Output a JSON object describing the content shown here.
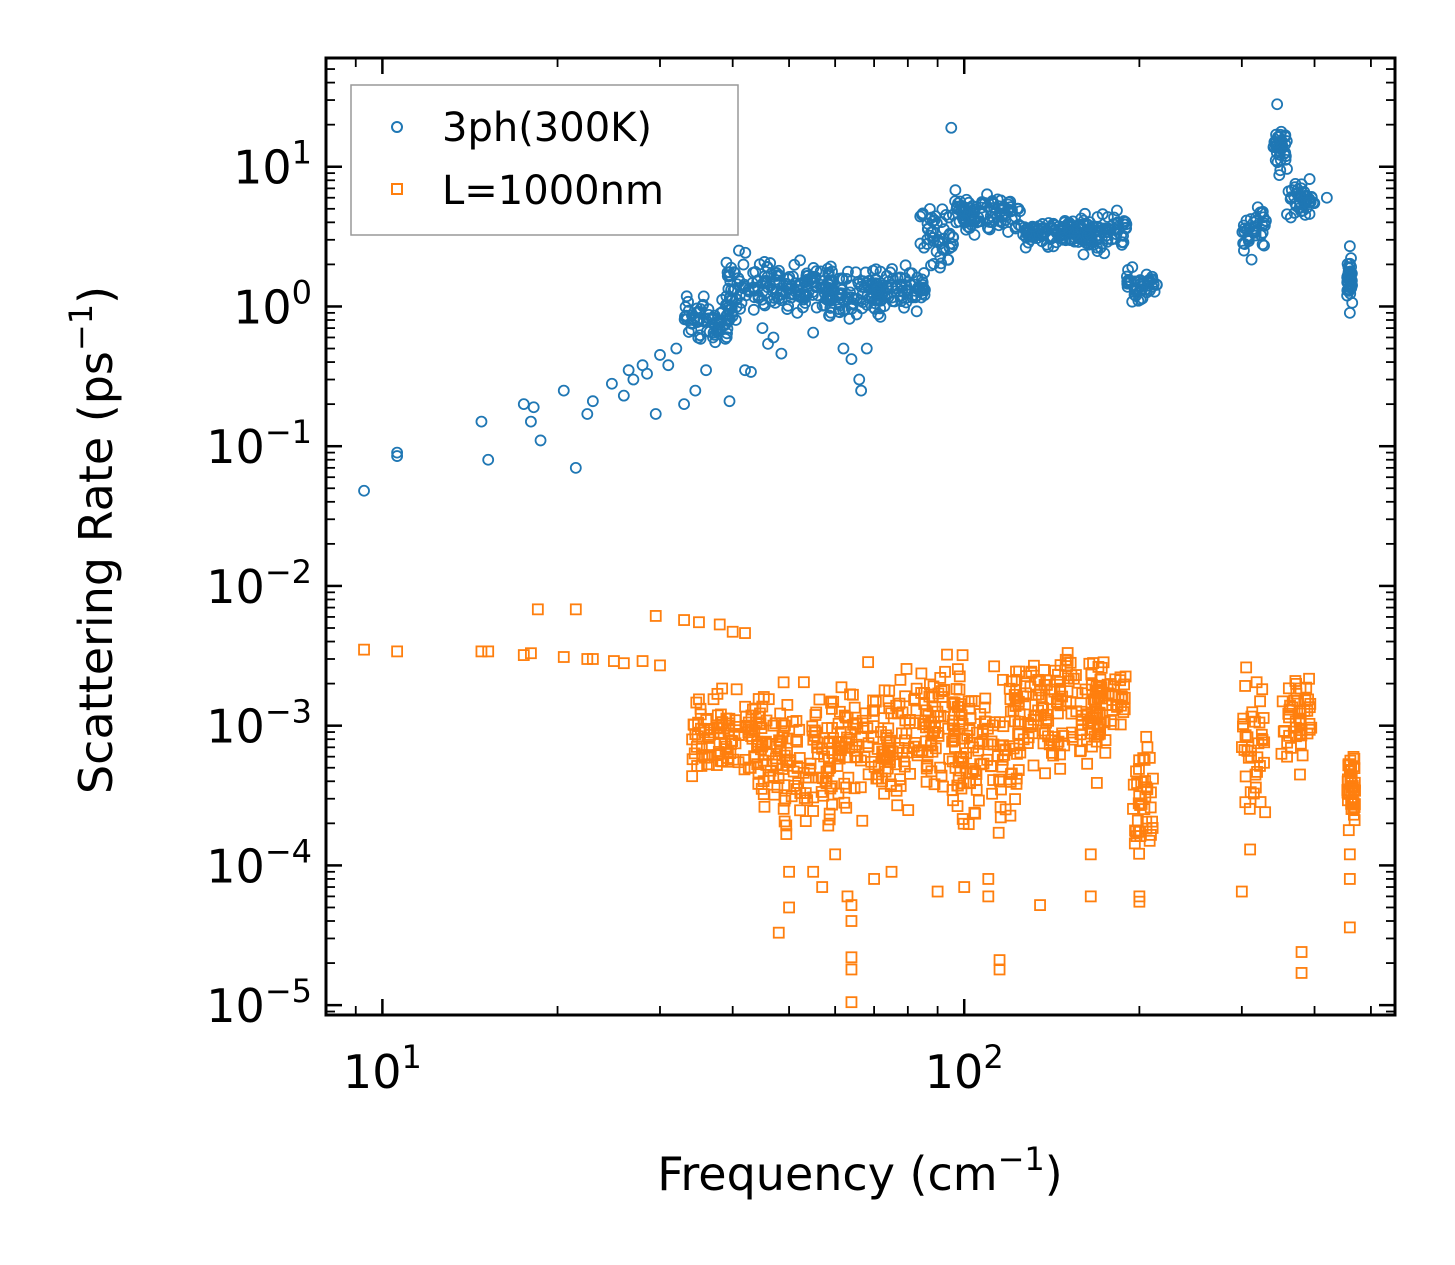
{
  "chart_data": {
    "type": "scatter",
    "xscale": "log",
    "yscale": "log",
    "xlim": [
      8,
      550
    ],
    "ylim": [
      8.5e-06,
      60
    ],
    "xlabel": {
      "text": "Frequency (cm",
      "sup": "−1",
      "close": ")"
    },
    "ylabel": {
      "text": "Scattering Rate (ps",
      "sup": "−1",
      "close": ")"
    },
    "xticks": [
      {
        "value": 10,
        "base": "10",
        "exp": "1"
      },
      {
        "value": 100,
        "base": "10",
        "exp": "2"
      }
    ],
    "yticks": [
      {
        "value": 1e-05,
        "base": "10",
        "exp": "−5"
      },
      {
        "value": 0.0001,
        "base": "10",
        "exp": "−4"
      },
      {
        "value": 0.001,
        "base": "10",
        "exp": "−3"
      },
      {
        "value": 0.01,
        "base": "10",
        "exp": "−2"
      },
      {
        "value": 0.1,
        "base": "10",
        "exp": "−1"
      },
      {
        "value": 1,
        "base": "10",
        "exp": "0"
      },
      {
        "value": 10,
        "base": "10",
        "exp": "1"
      }
    ],
    "legend_position": "top-left",
    "series": [
      {
        "name": "3ph(300K)",
        "marker": "circle",
        "color": "#1f77b4",
        "points": [
          [
            9.3,
            0.048
          ],
          [
            10.6,
            0.085
          ],
          [
            10.6,
            0.09
          ],
          [
            14.8,
            0.15
          ],
          [
            15.2,
            0.08
          ],
          [
            17.5,
            0.2
          ],
          [
            18.0,
            0.15
          ],
          [
            18.2,
            0.19
          ],
          [
            18.7,
            0.11
          ],
          [
            20.5,
            0.25
          ],
          [
            21.5,
            0.07
          ],
          [
            22.5,
            0.17
          ],
          [
            23.0,
            0.21
          ],
          [
            24.8,
            0.28
          ],
          [
            26.0,
            0.23
          ],
          [
            26.5,
            0.35
          ],
          [
            27.0,
            0.3
          ],
          [
            28.0,
            0.38
          ],
          [
            28.5,
            0.33
          ],
          [
            29.5,
            0.17
          ],
          [
            30.0,
            0.45
          ],
          [
            31.0,
            0.38
          ],
          [
            32.0,
            0.5
          ],
          [
            33.0,
            0.2
          ],
          [
            34.5,
            0.25
          ],
          [
            36.0,
            0.35
          ],
          [
            37.0,
            0.6
          ],
          [
            38.0,
            0.7
          ],
          [
            39.5,
            0.21
          ],
          [
            40.5,
            0.8
          ],
          [
            42.0,
            0.35
          ],
          [
            43.0,
            0.34
          ],
          [
            45.0,
            0.7
          ],
          [
            46.0,
            0.54
          ],
          [
            47.0,
            0.6
          ],
          [
            48.5,
            0.46
          ],
          [
            55.0,
            0.65
          ],
          [
            62.0,
            0.5
          ],
          [
            64.0,
            0.42
          ],
          [
            66.0,
            0.3
          ],
          [
            66.5,
            0.25
          ],
          [
            68.0,
            0.5
          ],
          [
            95.0,
            19
          ],
          [
            345,
            28
          ],
          [
            420,
            6
          ],
          [
            460,
            0.9
          ],
          [
            460,
            2.7
          ]
        ],
        "bands": [
          {
            "x0": 33,
            "x1": 40,
            "y0": 0.5,
            "y1": 1.4
          },
          {
            "x0": 39,
            "x1": 46,
            "y0": 0.7,
            "y1": 2.8
          },
          {
            "x0": 45,
            "x1": 60,
            "y0": 0.8,
            "y1": 2.5
          },
          {
            "x0": 58,
            "x1": 72,
            "y0": 0.7,
            "y1": 2.0
          },
          {
            "x0": 70,
            "x1": 86,
            "y0": 0.8,
            "y1": 2.2
          },
          {
            "x0": 84,
            "x1": 96,
            "y0": 1.5,
            "y1": 6.5
          },
          {
            "x0": 96,
            "x1": 125,
            "y0": 3.0,
            "y1": 7.0
          },
          {
            "x0": 125,
            "x1": 170,
            "y0": 2.5,
            "y1": 4.5
          },
          {
            "x0": 160,
            "x1": 190,
            "y0": 2.0,
            "y1": 5.5
          },
          {
            "x0": 190,
            "x1": 215,
            "y0": 0.95,
            "y1": 2.0
          },
          {
            "x0": 300,
            "x1": 330,
            "y0": 1.8,
            "y1": 6.5
          },
          {
            "x0": 340,
            "x1": 360,
            "y0": 8.0,
            "y1": 22
          },
          {
            "x0": 358,
            "x1": 400,
            "y0": 3.5,
            "y1": 9.0
          },
          {
            "x0": 455,
            "x1": 465,
            "y0": 1.0,
            "y1": 2.5
          }
        ]
      },
      {
        "name": "L=1000nm",
        "marker": "square",
        "color": "#ff7f0e",
        "points": [
          [
            9.3,
            0.0035
          ],
          [
            10.6,
            0.0034
          ],
          [
            14.8,
            0.0034
          ],
          [
            15.2,
            0.0034
          ],
          [
            17.5,
            0.0032
          ],
          [
            18.0,
            0.0033
          ],
          [
            18.5,
            0.0068
          ],
          [
            20.5,
            0.0031
          ],
          [
            21.5,
            0.0068
          ],
          [
            22.5,
            0.003
          ],
          [
            23.0,
            0.003
          ],
          [
            25.0,
            0.0029
          ],
          [
            26.0,
            0.0028
          ],
          [
            28.0,
            0.0029
          ],
          [
            29.5,
            0.0061
          ],
          [
            30.0,
            0.0027
          ],
          [
            33.0,
            0.0057
          ],
          [
            35.0,
            0.0055
          ],
          [
            38.0,
            0.0053
          ],
          [
            40.0,
            0.0047
          ],
          [
            42.0,
            0.0046
          ],
          [
            50.0,
            9e-05
          ],
          [
            50.0,
            5e-05
          ],
          [
            48.0,
            3.3e-05
          ],
          [
            55.0,
            9e-05
          ],
          [
            57.0,
            7e-05
          ],
          [
            60.0,
            0.00012
          ],
          [
            63.0,
            6e-05
          ],
          [
            64.0,
            5.2e-05
          ],
          [
            64.0,
            2.2e-05
          ],
          [
            64.0,
            1.8e-05
          ],
          [
            64.0,
            1.05e-05
          ],
          [
            64.0,
            4e-05
          ],
          [
            70.0,
            8e-05
          ],
          [
            75.0,
            9e-05
          ],
          [
            90.0,
            6.5e-05
          ],
          [
            100.0,
            7e-05
          ],
          [
            110.0,
            8e-05
          ],
          [
            110.0,
            6e-05
          ],
          [
            115.0,
            2.1e-05
          ],
          [
            115.0,
            1.8e-05
          ],
          [
            135.0,
            5.2e-05
          ],
          [
            165.0,
            0.00012
          ],
          [
            165.0,
            6e-05
          ],
          [
            200.0,
            5.5e-05
          ],
          [
            200.0,
            6e-05
          ],
          [
            300.0,
            6.5e-05
          ],
          [
            310.0,
            0.00013
          ],
          [
            380.0,
            2.4e-05
          ],
          [
            380.0,
            1.7e-05
          ],
          [
            460.0,
            0.00012
          ],
          [
            460.0,
            8e-05
          ],
          [
            460.0,
            3.6e-05
          ]
        ],
        "bands": [
          {
            "x0": 34,
            "x1": 45,
            "y0": 0.0003,
            "y1": 0.0025
          },
          {
            "x0": 44,
            "x1": 60,
            "y0": 0.00013,
            "y1": 0.0025
          },
          {
            "x0": 58,
            "x1": 75,
            "y0": 0.00015,
            "y1": 0.0035
          },
          {
            "x0": 72,
            "x1": 100,
            "y0": 0.0002,
            "y1": 0.0045
          },
          {
            "x0": 95,
            "x1": 125,
            "y0": 0.00012,
            "y1": 0.0035
          },
          {
            "x0": 120,
            "x1": 175,
            "y0": 0.0003,
            "y1": 0.0052
          },
          {
            "x0": 165,
            "x1": 190,
            "y0": 0.0007,
            "y1": 0.0035
          },
          {
            "x0": 195,
            "x1": 212,
            "y0": 6e-05,
            "y1": 0.0018
          },
          {
            "x0": 300,
            "x1": 330,
            "y0": 0.00013,
            "y1": 0.0032
          },
          {
            "x0": 350,
            "x1": 395,
            "y0": 0.0004,
            "y1": 0.0037
          },
          {
            "x0": 455,
            "x1": 470,
            "y0": 0.00015,
            "y1": 0.0008
          }
        ]
      }
    ]
  }
}
